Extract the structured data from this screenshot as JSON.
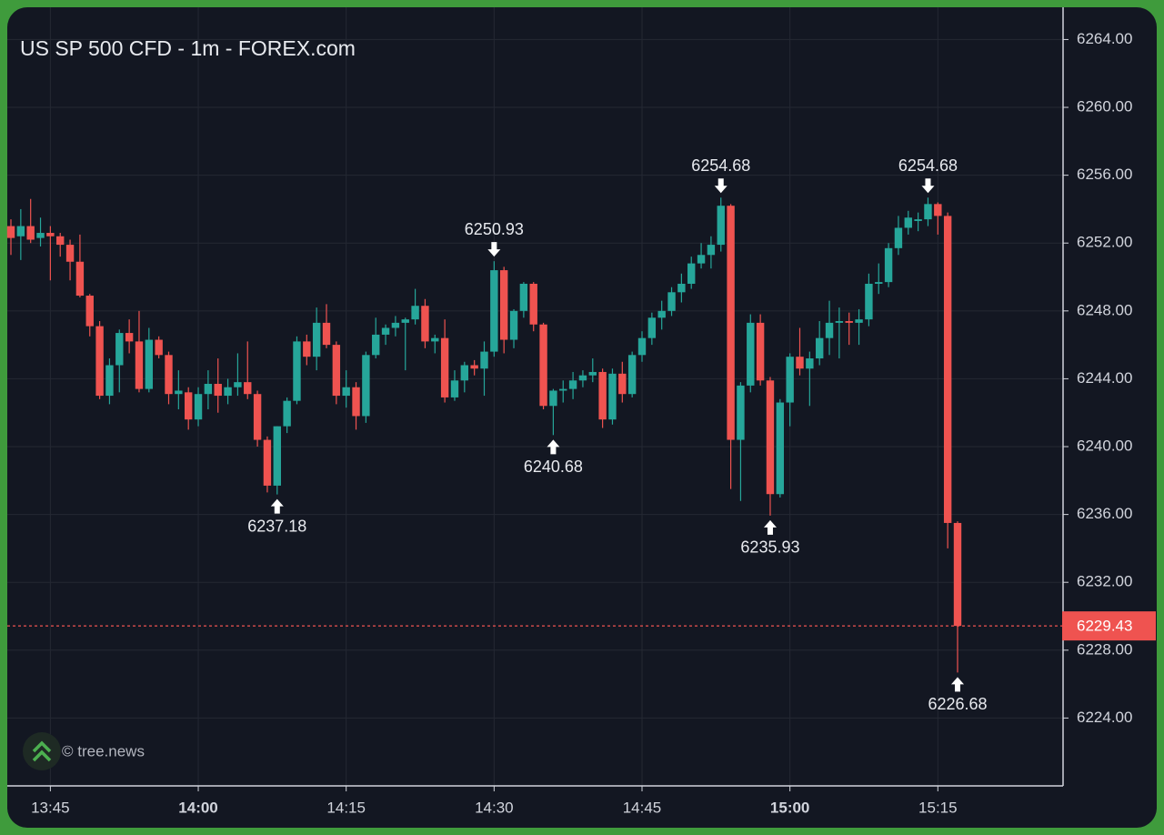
{
  "chart_data": {
    "type": "candlestick",
    "title": "US SP 500 CFD - 1m - FOREX.com",
    "watermark": "© tree.news",
    "up_color": "#26a69a",
    "down_color": "#ef5350",
    "grid": true,
    "categories": [
      null,
      null,
      null,
      null,
      "13:45",
      null,
      null,
      null,
      null,
      null,
      null,
      null,
      null,
      null,
      null,
      null,
      null,
      null,
      null,
      "14:00",
      null,
      null,
      null,
      null,
      null,
      null,
      null,
      null,
      null,
      null,
      null,
      null,
      null,
      null,
      "14:15",
      null,
      null,
      null,
      null,
      null,
      null,
      null,
      null,
      null,
      null,
      null,
      null,
      null,
      null,
      "14:30",
      null,
      null,
      null,
      null,
      null,
      null,
      null,
      null,
      null,
      null,
      null,
      null,
      null,
      null,
      "14:45",
      null,
      null,
      null,
      null,
      null,
      null,
      null,
      null,
      null,
      null,
      null,
      null,
      null,
      null,
      "15:00",
      null,
      null,
      null,
      null,
      null,
      null,
      null,
      null,
      null,
      null,
      null,
      null,
      null,
      null,
      "15:15",
      null,
      null
    ],
    "bold_categories": [
      19,
      79
    ],
    "open": [
      6253.0,
      6252.4,
      6253.0,
      6252.3,
      6252.6,
      6252.4,
      6251.9,
      6250.9,
      6248.9,
      6247.1,
      6243.0,
      6244.8,
      6246.7,
      6246.2,
      6243.4,
      6246.3,
      6245.4,
      6243.1,
      6243.2,
      6241.6,
      6243.1,
      6243.7,
      6243.0,
      6243.5,
      6243.8,
      6243.1,
      6240.4,
      6237.7,
      6241.2,
      6242.7,
      6246.2,
      6245.3,
      6247.3,
      6246.0,
      6243.0,
      6243.5,
      6241.8,
      6245.4,
      6246.6,
      6247.0,
      6247.3,
      6247.5,
      6248.3,
      6246.2,
      6246.4,
      6242.9,
      6243.9,
      6244.8,
      6244.6,
      6245.6,
      6250.4,
      6246.3,
      6248.0,
      6249.6,
      6247.2,
      6242.4,
      6243.3,
      6243.4,
      6243.9,
      6244.2,
      6244.4,
      6241.6,
      6244.3,
      6243.1,
      6245.4,
      6246.4,
      6247.6,
      6248.0,
      6249.1,
      6249.6,
      6250.8,
      6251.3,
      6251.9,
      6254.2,
      6240.4,
      6243.6,
      6247.3,
      6243.9,
      6237.2,
      6242.6,
      6245.3,
      6244.6,
      6245.2,
      6246.4,
      6247.3,
      6247.4,
      6247.3,
      6247.5,
      6249.6,
      6249.7,
      6251.7,
      6252.9,
      6253.3,
      6253.4,
      6254.3,
      6253.6,
      6235.5
    ],
    "high": [
      6253.4,
      6254.0,
      6254.6,
      6253.5,
      6253.0,
      6252.6,
      6252.2,
      6252.5,
      6249.0,
      6247.4,
      6245.2,
      6246.9,
      6247.5,
      6248.0,
      6247.0,
      6246.5,
      6245.6,
      6244.5,
      6243.5,
      6243.5,
      6244.5,
      6245.2,
      6244.0,
      6245.5,
      6246.2,
      6243.3,
      6240.6,
      6241.2,
      6242.9,
      6246.5,
      6246.6,
      6248.2,
      6248.4,
      6246.2,
      6244.5,
      6243.8,
      6245.6,
      6247.6,
      6247.2,
      6247.7,
      6247.6,
      6249.3,
      6248.7,
      6246.6,
      6247.5,
      6244.5,
      6245.0,
      6245.1,
      6246.2,
      6250.93,
      6250.6,
      6248.1,
      6249.7,
      6249.7,
      6247.3,
      6243.4,
      6243.9,
      6244.4,
      6244.5,
      6245.2,
      6244.6,
      6244.6,
      6245.0,
      6245.6,
      6246.8,
      6247.9,
      6248.6,
      6249.4,
      6250.2,
      6251.2,
      6252.0,
      6252.4,
      6254.68,
      6254.3,
      6243.8,
      6247.8,
      6247.8,
      6244.1,
      6242.8,
      6245.5,
      6247.0,
      6245.6,
      6247.4,
      6248.6,
      6248.2,
      6247.9,
      6248.1,
      6250.2,
      6250.8,
      6252.0,
      6253.6,
      6253.9,
      6253.8,
      6254.68,
      6254.4,
      6253.8,
      6235.6
    ],
    "low": [
      6251.3,
      6251.0,
      6252.0,
      6251.8,
      6249.8,
      6251.2,
      6249.8,
      6248.8,
      6246.5,
      6242.8,
      6242.5,
      6243.2,
      6245.5,
      6243.2,
      6243.2,
      6245.2,
      6242.5,
      6242.2,
      6241.0,
      6241.2,
      6242.2,
      6242.0,
      6242.5,
      6243.0,
      6242.8,
      6240.0,
      6237.3,
      6237.18,
      6240.8,
      6242.5,
      6244.8,
      6244.5,
      6245.8,
      6242.5,
      6242.3,
      6241.0,
      6241.4,
      6245.2,
      6246.0,
      6246.5,
      6244.5,
      6247.2,
      6245.8,
      6245.5,
      6242.6,
      6242.7,
      6243.2,
      6244.2,
      6243.0,
      6245.3,
      6245.5,
      6245.8,
      6247.6,
      6246.8,
      6242.2,
      6240.68,
      6242.6,
      6242.8,
      6243.5,
      6243.8,
      6241.1,
      6241.3,
      6242.6,
      6242.9,
      6245.0,
      6246.0,
      6246.9,
      6247.7,
      6248.5,
      6249.3,
      6250.5,
      6250.5,
      6251.5,
      6237.5,
      6236.8,
      6243.2,
      6243.6,
      6235.93,
      6237.0,
      6241.2,
      6244.2,
      6242.4,
      6244.8,
      6245.4,
      6245.2,
      6246.0,
      6246.0,
      6247.1,
      6249.0,
      6249.4,
      6251.3,
      6252.5,
      6252.7,
      6253.0,
      6252.5,
      6234.0,
      6226.68
    ],
    "close": [
      6252.3,
      6253.0,
      6252.2,
      6252.6,
      6252.4,
      6251.9,
      6250.9,
      6248.9,
      6247.1,
      6243.0,
      6244.8,
      6246.7,
      6246.2,
      6243.4,
      6246.3,
      6245.4,
      6243.1,
      6243.3,
      6241.6,
      6243.1,
      6243.7,
      6243.0,
      6243.5,
      6243.8,
      6243.1,
      6240.4,
      6237.7,
      6241.2,
      6242.7,
      6246.2,
      6245.3,
      6247.3,
      6246.0,
      6243.0,
      6243.5,
      6241.8,
      6245.4,
      6246.6,
      6247.0,
      6247.3,
      6247.5,
      6248.3,
      6246.2,
      6246.4,
      6242.9,
      6243.9,
      6244.8,
      6244.6,
      6245.6,
      6250.4,
      6246.3,
      6248.0,
      6249.6,
      6247.2,
      6242.4,
      6243.3,
      6243.4,
      6243.9,
      6244.2,
      6244.4,
      6241.6,
      6244.3,
      6243.1,
      6245.4,
      6246.4,
      6247.6,
      6248.0,
      6249.1,
      6249.6,
      6250.8,
      6251.3,
      6251.9,
      6254.2,
      6240.4,
      6243.6,
      6247.3,
      6243.9,
      6237.2,
      6242.6,
      6245.3,
      6244.6,
      6245.2,
      6246.4,
      6247.3,
      6247.4,
      6247.3,
      6247.5,
      6249.6,
      6249.7,
      6251.7,
      6252.9,
      6253.5,
      6253.4,
      6254.3,
      6253.6,
      6235.5,
      6229.43
    ],
    "marked_highs": [
      49,
      72,
      93
    ],
    "marked_lows": [
      27,
      55,
      77,
      96
    ],
    "ylim": [
      6220,
      6265.9
    ],
    "yticks": [
      {
        "value": 6224,
        "label": "6224.00"
      },
      {
        "value": 6228,
        "label": "6228.00"
      },
      {
        "value": 6232,
        "label": "6232.00"
      },
      {
        "value": 6236,
        "label": "6236.00"
      },
      {
        "value": 6240,
        "label": "6240.00"
      },
      {
        "value": 6244,
        "label": "6244.00"
      },
      {
        "value": 6248,
        "label": "6248.00"
      },
      {
        "value": 6252,
        "label": "6252.00"
      },
      {
        "value": 6256,
        "label": "6256.00"
      },
      {
        "value": 6260,
        "label": "6260.00"
      },
      {
        "value": 6264,
        "label": "6264.00"
      }
    ]
  }
}
